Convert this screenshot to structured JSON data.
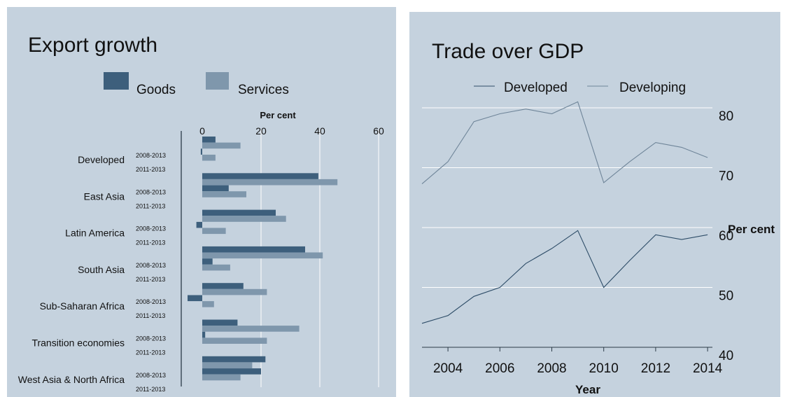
{
  "chart_data": [
    {
      "type": "bar",
      "orientation": "horizontal",
      "title": "Export growth",
      "xlabel": "Per cent",
      "xlim": [
        0,
        60
      ],
      "xticks": [
        "0",
        "20",
        "40",
        "60"
      ],
      "legend_position": "top",
      "grid": true,
      "categories": [
        "Developed",
        "East Asia",
        "Latin America",
        "South Asia",
        "Sub-Saharan Africa",
        "Transition economies",
        "West Asia & North Africa"
      ],
      "periods": [
        "2008-2013",
        "2011-2013"
      ],
      "series": [
        {
          "name": "Goods",
          "color": "#3d5f7c",
          "values": [
            [
              4.5,
              -0.5
            ],
            [
              39.5,
              9
            ],
            [
              25,
              -2
            ],
            [
              35,
              3.5
            ],
            [
              14,
              -5
            ],
            [
              12,
              1
            ],
            [
              21.5,
              20
            ]
          ]
        },
        {
          "name": "Services",
          "color": "#7f97ac",
          "values": [
            [
              13,
              4.5
            ],
            [
              46,
              15
            ],
            [
              28.5,
              8
            ],
            [
              41,
              9.5
            ],
            [
              22,
              4
            ],
            [
              33,
              22
            ],
            [
              17,
              13
            ]
          ]
        }
      ]
    },
    {
      "type": "line",
      "title": "Trade over GDP",
      "xlabel": "Year",
      "ylabel": "Per cent",
      "ylim": [
        40,
        82
      ],
      "yticks": [
        "40",
        "50",
        "60",
        "70",
        "80"
      ],
      "xticks": [
        "2004",
        "2006",
        "2008",
        "2010",
        "2012",
        "2014"
      ],
      "legend_position": "top",
      "grid": true,
      "x": [
        2003,
        2004,
        2005,
        2006,
        2007,
        2008,
        2009,
        2010,
        2011,
        2012,
        2013,
        2014
      ],
      "series": [
        {
          "name": "Developed",
          "color": "#2e4d68",
          "values": [
            44,
            45.3,
            48.5,
            50,
            54,
            56.5,
            59.5,
            50,
            54.5,
            58.8,
            58,
            58.8
          ]
        },
        {
          "name": "Developing",
          "color": "#6f8599",
          "values": [
            67.3,
            71,
            77.7,
            79,
            79.8,
            79,
            81,
            67.5,
            71,
            74.2,
            73.4,
            71.7
          ]
        }
      ]
    }
  ]
}
